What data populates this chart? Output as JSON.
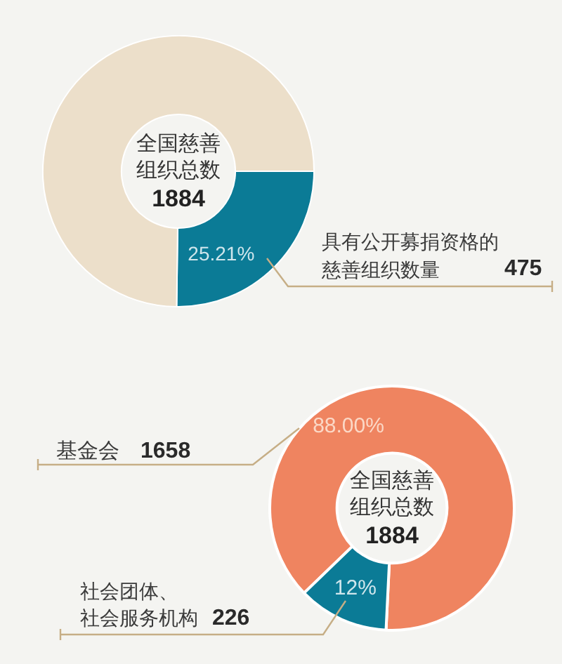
{
  "chart_data": [
    {
      "type": "donut",
      "categories": [
        "具有公开募捐资格的慈善组织数量",
        null
      ],
      "values": [
        25.21,
        74.79
      ],
      "colors": [
        "#0b7b96",
        "#ecdfca"
      ],
      "value_labels": [
        "25.21%",
        null
      ],
      "annotations": [
        "全国慈善组织总数",
        "1884",
        {
          "text": "475",
          "x": "具有公开募捐资格的慈善组织数量"
        }
      ]
    },
    {
      "type": "donut",
      "categories": [
        "基金会",
        "社会团体、社会服务机构"
      ],
      "values": [
        88.0,
        12
      ],
      "colors": [
        "#ef8460",
        "#0b7b96"
      ],
      "value_labels": [
        "88.00%",
        "12%"
      ],
      "annotations": [
        "全国慈善组织总数",
        "1884",
        {
          "text": "1658",
          "x": "基金会"
        },
        {
          "text": "226",
          "x": "社会团体、社会服务机构"
        }
      ]
    }
  ]
}
